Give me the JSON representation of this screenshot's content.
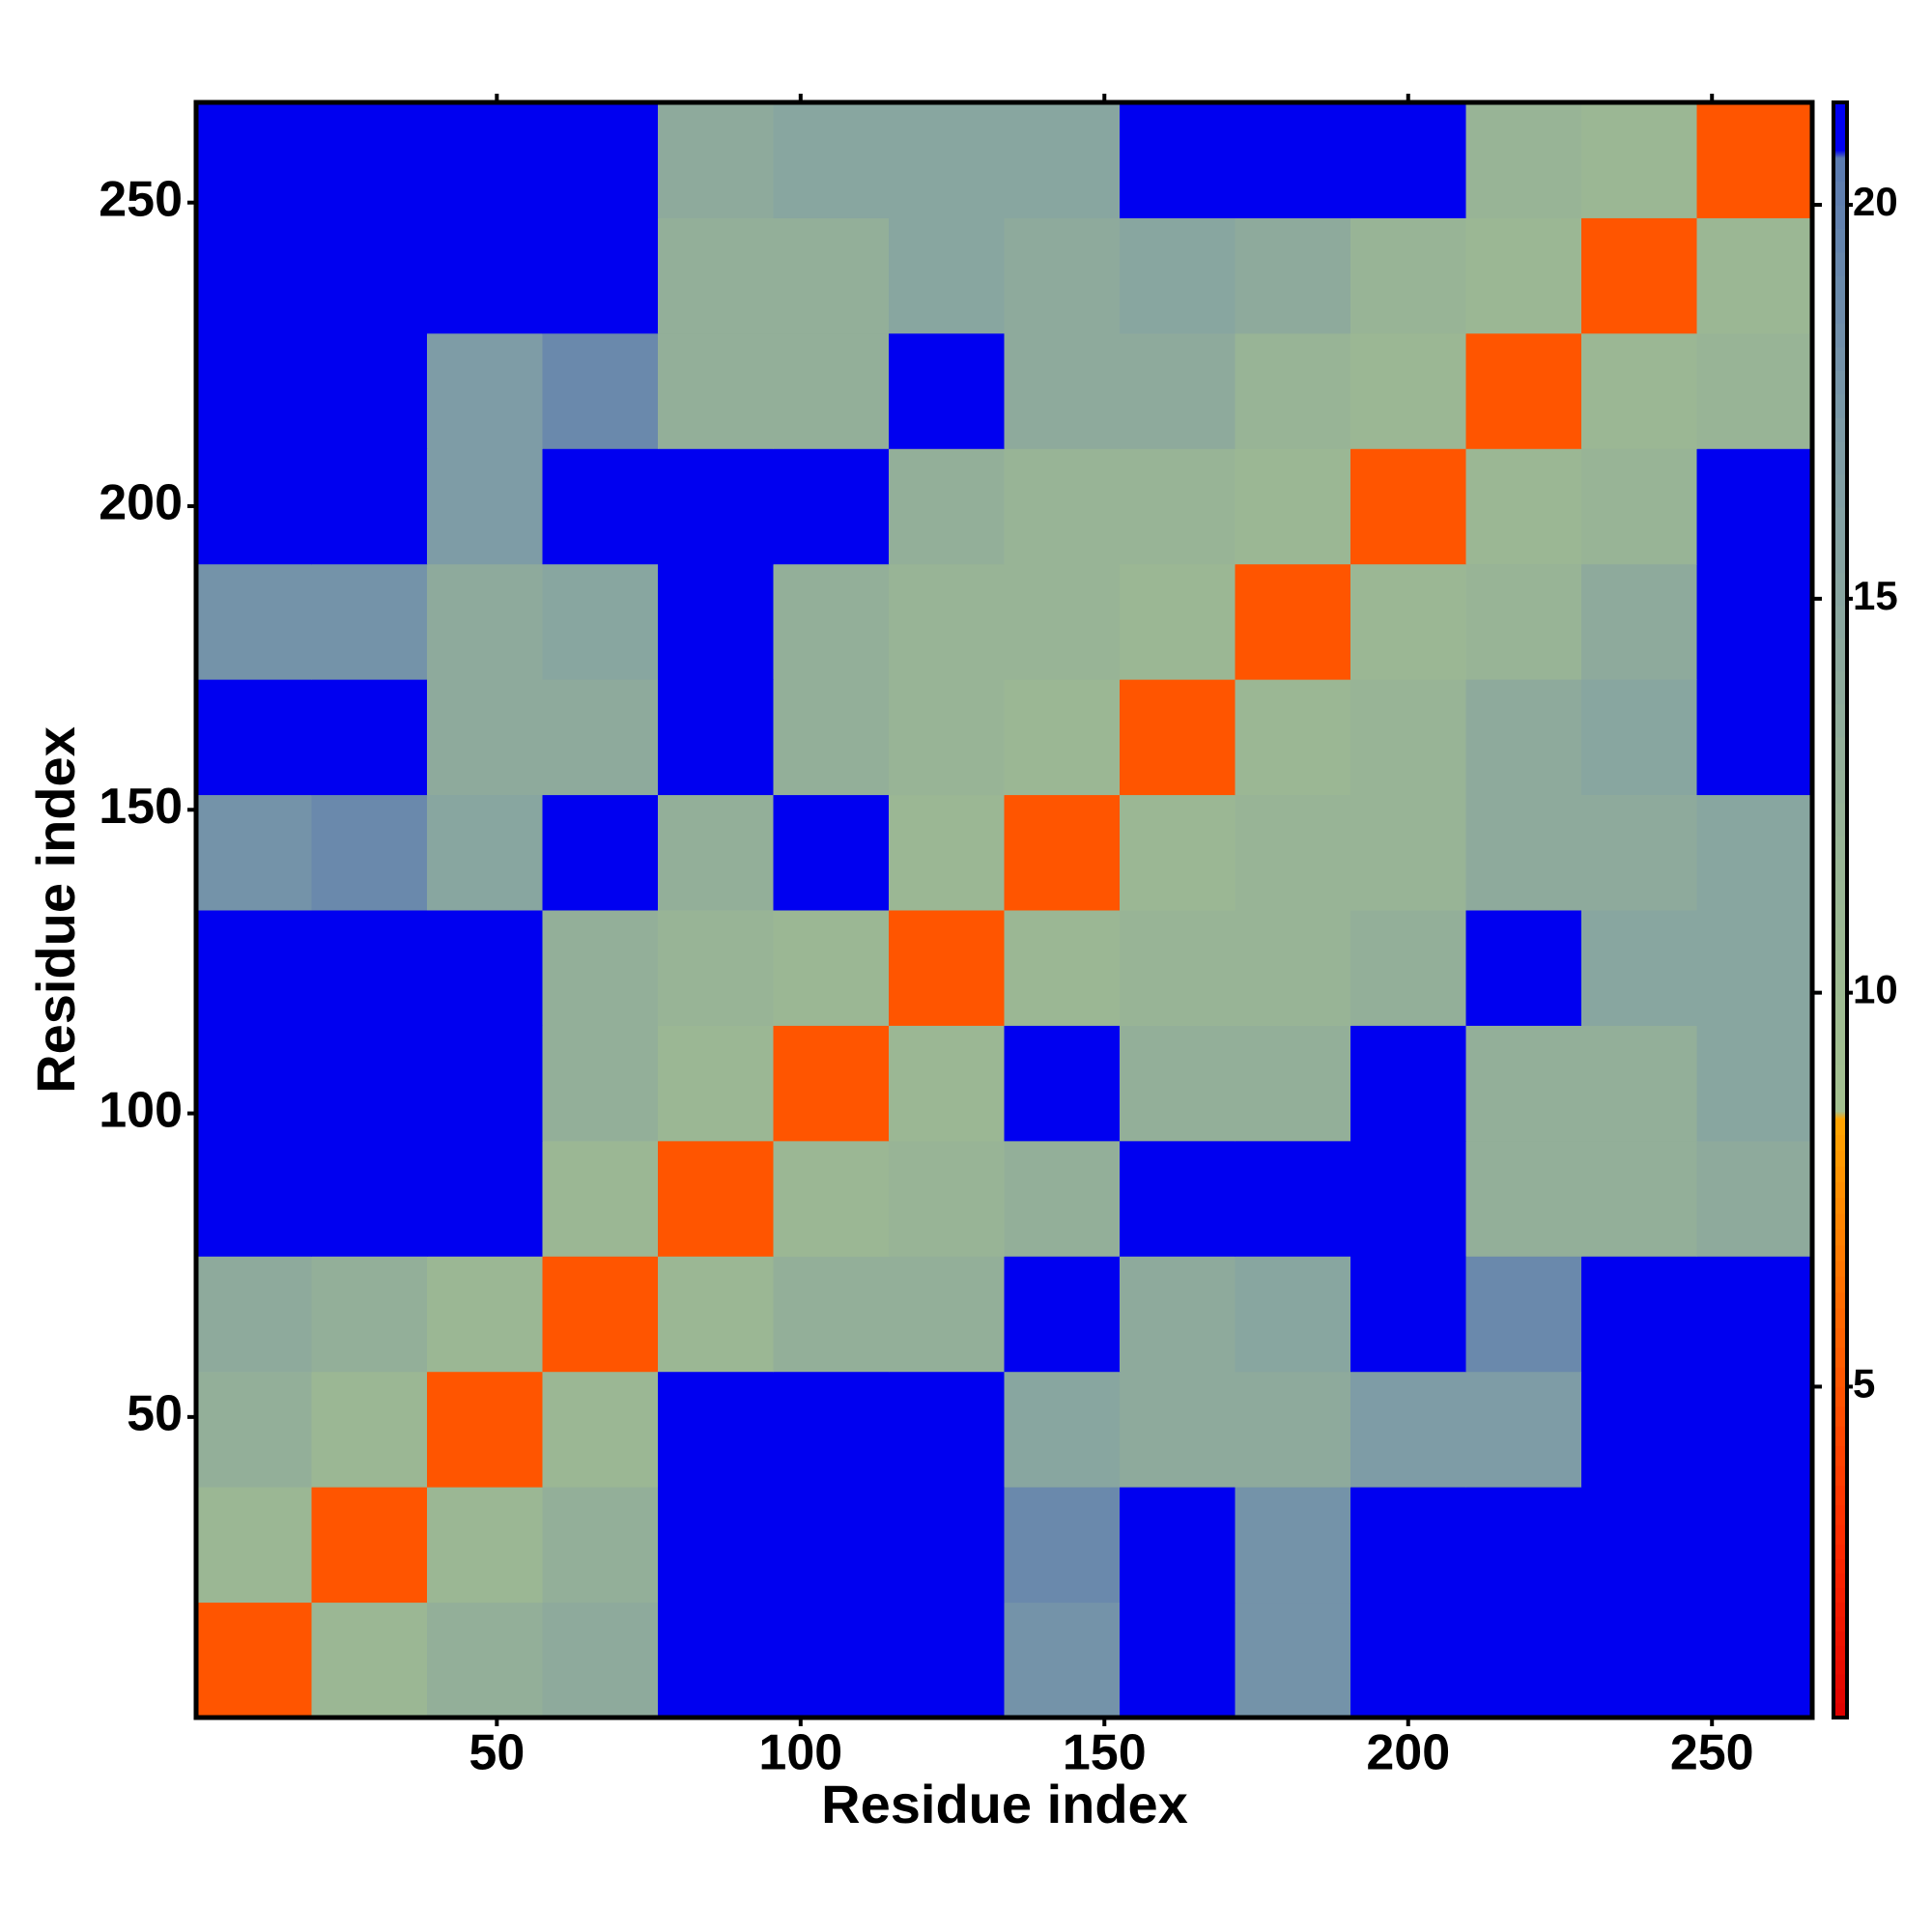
{
  "chart_data": {
    "type": "heatmap",
    "x_label": "Residue index",
    "y_label": "Residue index",
    "x_edges": [
      0.5,
      19.5,
      38.5,
      57.5,
      76.5,
      95.5,
      114.5,
      133.5,
      152.5,
      171.5,
      190.5,
      209.5,
      228.5,
      247.5,
      266.5
    ],
    "y_edges": [
      0.5,
      19.5,
      38.5,
      57.5,
      76.5,
      95.5,
      114.5,
      133.5,
      152.5,
      171.5,
      190.5,
      209.5,
      228.5,
      247.5,
      266.5
    ],
    "values": [
      [
        5,
        11,
        13,
        14,
        21,
        21,
        21,
        18,
        21,
        18,
        21,
        21,
        21,
        21
      ],
      [
        11,
        5,
        11,
        13,
        21,
        21,
        21,
        19,
        21,
        18,
        21,
        21,
        21,
        21
      ],
      [
        13,
        11,
        5,
        11,
        21,
        21,
        21,
        15,
        14,
        14,
        17,
        17,
        21,
        21
      ],
      [
        14,
        13,
        11,
        5,
        11,
        13,
        13,
        21,
        14,
        15,
        21,
        19,
        21,
        21
      ],
      [
        21,
        21,
        21,
        11,
        5,
        11,
        12,
        13,
        21,
        21,
        21,
        13,
        13,
        14
      ],
      [
        21,
        21,
        21,
        13,
        11,
        5,
        11,
        21,
        13,
        13,
        21,
        13,
        13,
        15
      ],
      [
        21,
        21,
        21,
        13,
        12,
        11,
        5,
        11,
        12,
        12,
        13,
        21,
        15,
        15
      ],
      [
        18,
        19,
        15,
        21,
        13,
        21,
        11,
        5,
        11,
        12,
        12,
        14,
        14,
        15
      ],
      [
        21,
        21,
        14,
        14,
        21,
        13,
        12,
        11,
        5,
        11,
        12,
        14,
        15,
        21
      ],
      [
        18,
        18,
        14,
        15,
        21,
        13,
        12,
        12,
        11,
        5,
        11,
        12,
        14,
        21
      ],
      [
        21,
        21,
        17,
        21,
        21,
        21,
        13,
        12,
        12,
        11,
        5,
        11,
        12,
        21
      ],
      [
        21,
        21,
        17,
        19,
        13,
        13,
        21,
        14,
        14,
        12,
        11,
        5,
        11,
        12
      ],
      [
        21,
        21,
        21,
        21,
        13,
        13,
        15,
        14,
        15,
        14,
        12,
        11,
        5,
        11
      ],
      [
        21,
        21,
        21,
        21,
        14,
        15,
        15,
        15,
        21,
        21,
        21,
        12,
        11,
        5
      ]
    ],
    "xlim": [
      0.5,
      266.5
    ],
    "ylim": [
      0.5,
      266.5
    ],
    "xticks": [
      50,
      100,
      150,
      200,
      250
    ],
    "yticks": [
      50,
      100,
      150,
      200,
      250
    ],
    "zlim": [
      0.8,
      21.3
    ],
    "zticks": [
      5,
      10,
      15,
      20
    ],
    "colorscale": [
      [
        0.8,
        "#e00000"
      ],
      [
        3,
        "#ff2a00"
      ],
      [
        6,
        "#ff6a00"
      ],
      [
        8.4,
        "#ffa500"
      ],
      [
        8.5,
        "#a3c08f"
      ],
      [
        12,
        "#98b496"
      ],
      [
        17,
        "#7e9ca6"
      ],
      [
        20.6,
        "#5a7ab0"
      ],
      [
        20.7,
        "#0000f0"
      ],
      [
        21.3,
        "#0000f0"
      ]
    ]
  }
}
